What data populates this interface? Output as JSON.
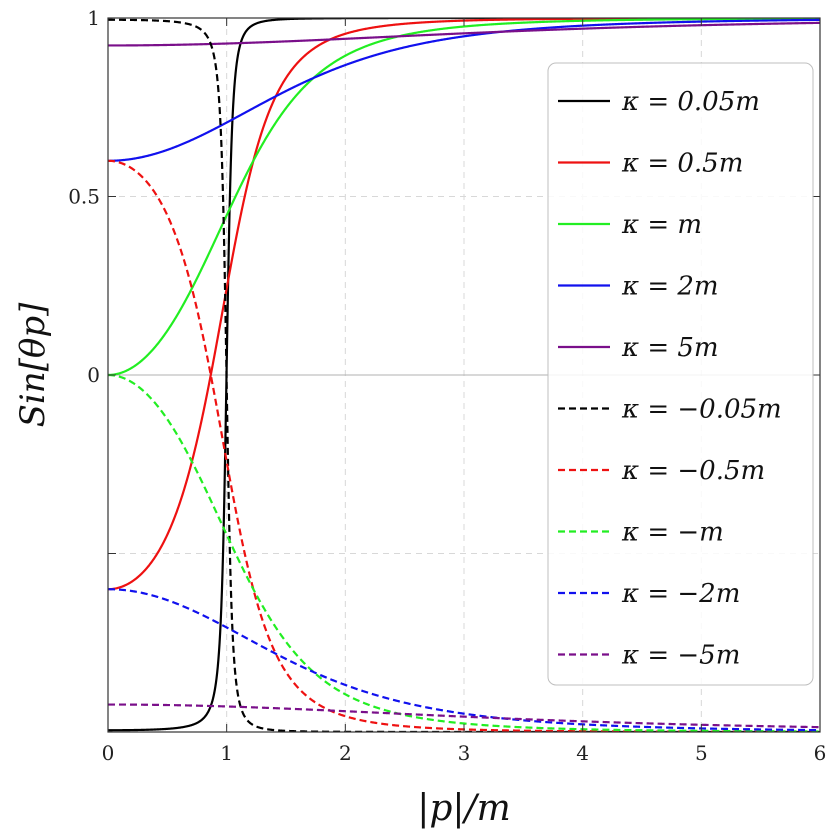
{
  "chart_data": {
    "type": "line",
    "xlabel": "|p|/m",
    "ylabel": "Sin[θp]",
    "xlim": [
      0,
      6
    ],
    "ylim": [
      -1,
      1
    ],
    "x_ticks": [
      "0",
      "1",
      "2",
      "3",
      "4",
      "5",
      "6"
    ],
    "y_ticks": [
      {
        "value": 1,
        "label": "1"
      },
      {
        "value": 0.5,
        "label": "0.5"
      },
      {
        "value": 0,
        "label": "0"
      }
    ],
    "grid": true,
    "legend_position": "right",
    "series": [
      {
        "name": "κ = 0.05m",
        "kappa": 0.05,
        "color": "#000000",
        "dash": "solid"
      },
      {
        "name": "κ = 0.5m",
        "kappa": 0.5,
        "color": "#ee1111",
        "dash": "solid"
      },
      {
        "name": "κ = m",
        "kappa": 1,
        "color": "#22ee22",
        "dash": "solid"
      },
      {
        "name": "κ = 2m",
        "kappa": 2,
        "color": "#1111ee",
        "dash": "solid"
      },
      {
        "name": "κ = 5m",
        "kappa": 5,
        "color": "#7a0f8a",
        "dash": "solid"
      },
      {
        "name": "κ = −0.05m",
        "kappa": -0.05,
        "color": "#000000",
        "dash": "dashed"
      },
      {
        "name": "κ = −0.5m",
        "kappa": -0.5,
        "color": "#ee1111",
        "dash": "dashed"
      },
      {
        "name": "κ = −m",
        "kappa": -1,
        "color": "#22ee22",
        "dash": "dashed"
      },
      {
        "name": "κ = −2m",
        "kappa": -2,
        "color": "#1111ee",
        "dash": "dashed"
      },
      {
        "name": "κ = −5m",
        "kappa": -5,
        "color": "#7a0f8a",
        "dash": "dashed"
      }
    ]
  }
}
